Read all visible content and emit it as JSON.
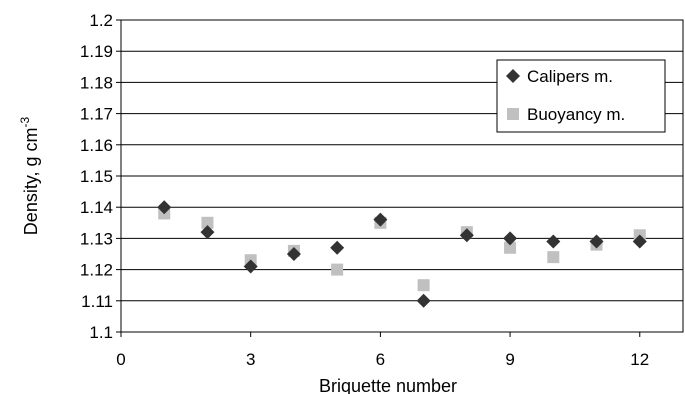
{
  "chart_data": {
    "type": "scatter",
    "xlabel": "Briquette number",
    "ylabel": "Density, g cm",
    "ylabel_superscript": "-3",
    "xlim": [
      0,
      13
    ],
    "ylim": [
      1.1,
      1.2
    ],
    "xticks": [
      0,
      3,
      6,
      9,
      12
    ],
    "yticks": [
      1.1,
      1.11,
      1.12,
      1.13,
      1.14,
      1.15,
      1.16,
      1.17,
      1.18,
      1.19,
      1.2
    ],
    "xtick_labels": [
      "0",
      "3",
      "6",
      "9",
      "12"
    ],
    "ytick_labels": [
      "1.1",
      "1.11",
      "1.12",
      "1.13",
      "1.14",
      "1.15",
      "1.16",
      "1.17",
      "1.18",
      "1.19",
      "1.2"
    ],
    "grid": "horizontal",
    "legend_position": "top-right",
    "series": [
      {
        "name": "Calipers m.",
        "marker": "diamond",
        "color": "#333333",
        "x": [
          1,
          2,
          3,
          4,
          5,
          6,
          7,
          8,
          9,
          10,
          11,
          12
        ],
        "y": [
          1.14,
          1.132,
          1.121,
          1.125,
          1.127,
          1.136,
          1.11,
          1.131,
          1.13,
          1.129,
          1.129,
          1.129
        ]
      },
      {
        "name": "Buoyancy m.",
        "marker": "square",
        "color": "#c0c0c0",
        "x": [
          1,
          2,
          3,
          4,
          5,
          6,
          7,
          8,
          9,
          10,
          11,
          12
        ],
        "y": [
          1.138,
          1.135,
          1.123,
          1.126,
          1.12,
          1.135,
          1.115,
          1.132,
          1.127,
          1.124,
          1.128,
          1.131
        ]
      }
    ]
  }
}
